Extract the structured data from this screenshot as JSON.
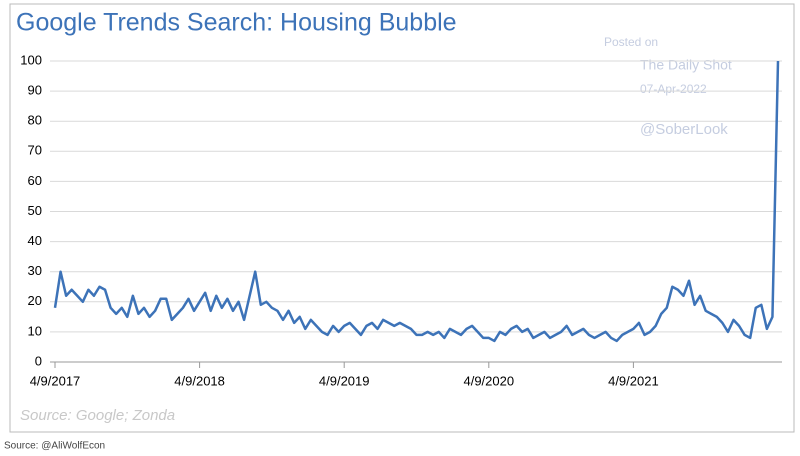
{
  "chart_data": {
    "type": "line",
    "title": "Google Trends Search: Housing Bubble",
    "annotations": [
      "Posted on",
      "The Daily Shot",
      "07-Apr-2022",
      "@SoberLook"
    ],
    "source": "Source: Google; Zonda",
    "footer": "Source: @AliWolfEcon",
    "color": "#3d73b8",
    "grid": true,
    "ylim": [
      0,
      100
    ],
    "yticks": [
      0,
      10,
      20,
      30,
      40,
      50,
      60,
      70,
      80,
      90,
      100
    ],
    "categories": [
      "4/9/2017",
      null,
      null,
      null,
      null,
      null,
      null,
      null,
      null,
      null,
      null,
      null,
      null,
      null,
      null,
      null,
      null,
      null,
      null,
      null,
      null,
      null,
      null,
      null,
      null,
      null,
      "4/9/2018",
      null,
      null,
      null,
      null,
      null,
      null,
      null,
      null,
      null,
      null,
      null,
      null,
      null,
      null,
      null,
      null,
      null,
      null,
      null,
      null,
      null,
      null,
      null,
      null,
      null,
      "4/9/2019",
      null,
      null,
      null,
      null,
      null,
      null,
      null,
      null,
      null,
      null,
      null,
      null,
      null,
      null,
      null,
      null,
      null,
      null,
      null,
      null,
      null,
      null,
      null,
      null,
      null,
      "4/9/2020",
      null,
      null,
      null,
      null,
      null,
      null,
      null,
      null,
      null,
      null,
      null,
      null,
      null,
      null,
      null,
      null,
      null,
      null,
      null,
      null,
      null,
      null,
      null,
      null,
      null,
      "4/9/2021",
      null,
      null,
      null,
      null,
      null,
      null,
      null,
      null,
      null,
      null,
      null,
      null,
      null,
      null,
      null,
      null,
      null,
      null,
      null,
      null,
      null,
      null,
      null,
      null,
      null,
      null
    ],
    "values": [
      18,
      30,
      22,
      24,
      22,
      20,
      24,
      22,
      25,
      24,
      18,
      16,
      18,
      15,
      22,
      16,
      18,
      15,
      17,
      21,
      21,
      14,
      16,
      18,
      21,
      17,
      20,
      23,
      17,
      22,
      18,
      21,
      17,
      20,
      14,
      22,
      30,
      19,
      20,
      18,
      17,
      14,
      17,
      13,
      15,
      11,
      14,
      12,
      10,
      9,
      12,
      10,
      12,
      13,
      11,
      9,
      12,
      13,
      11,
      14,
      13,
      12,
      13,
      12,
      11,
      9,
      9,
      10,
      9,
      10,
      8,
      11,
      10,
      9,
      11,
      12,
      10,
      8,
      8,
      7,
      10,
      9,
      11,
      12,
      10,
      11,
      8,
      9,
      10,
      8,
      9,
      10,
      12,
      9,
      10,
      11,
      9,
      8,
      9,
      10,
      8,
      7,
      9,
      10,
      11,
      13,
      9,
      10,
      12,
      16,
      18,
      25,
      24,
      22,
      27,
      19,
      22,
      17,
      16,
      15,
      13,
      10,
      14,
      12,
      9,
      8,
      18,
      19,
      11,
      15,
      100
    ]
  }
}
